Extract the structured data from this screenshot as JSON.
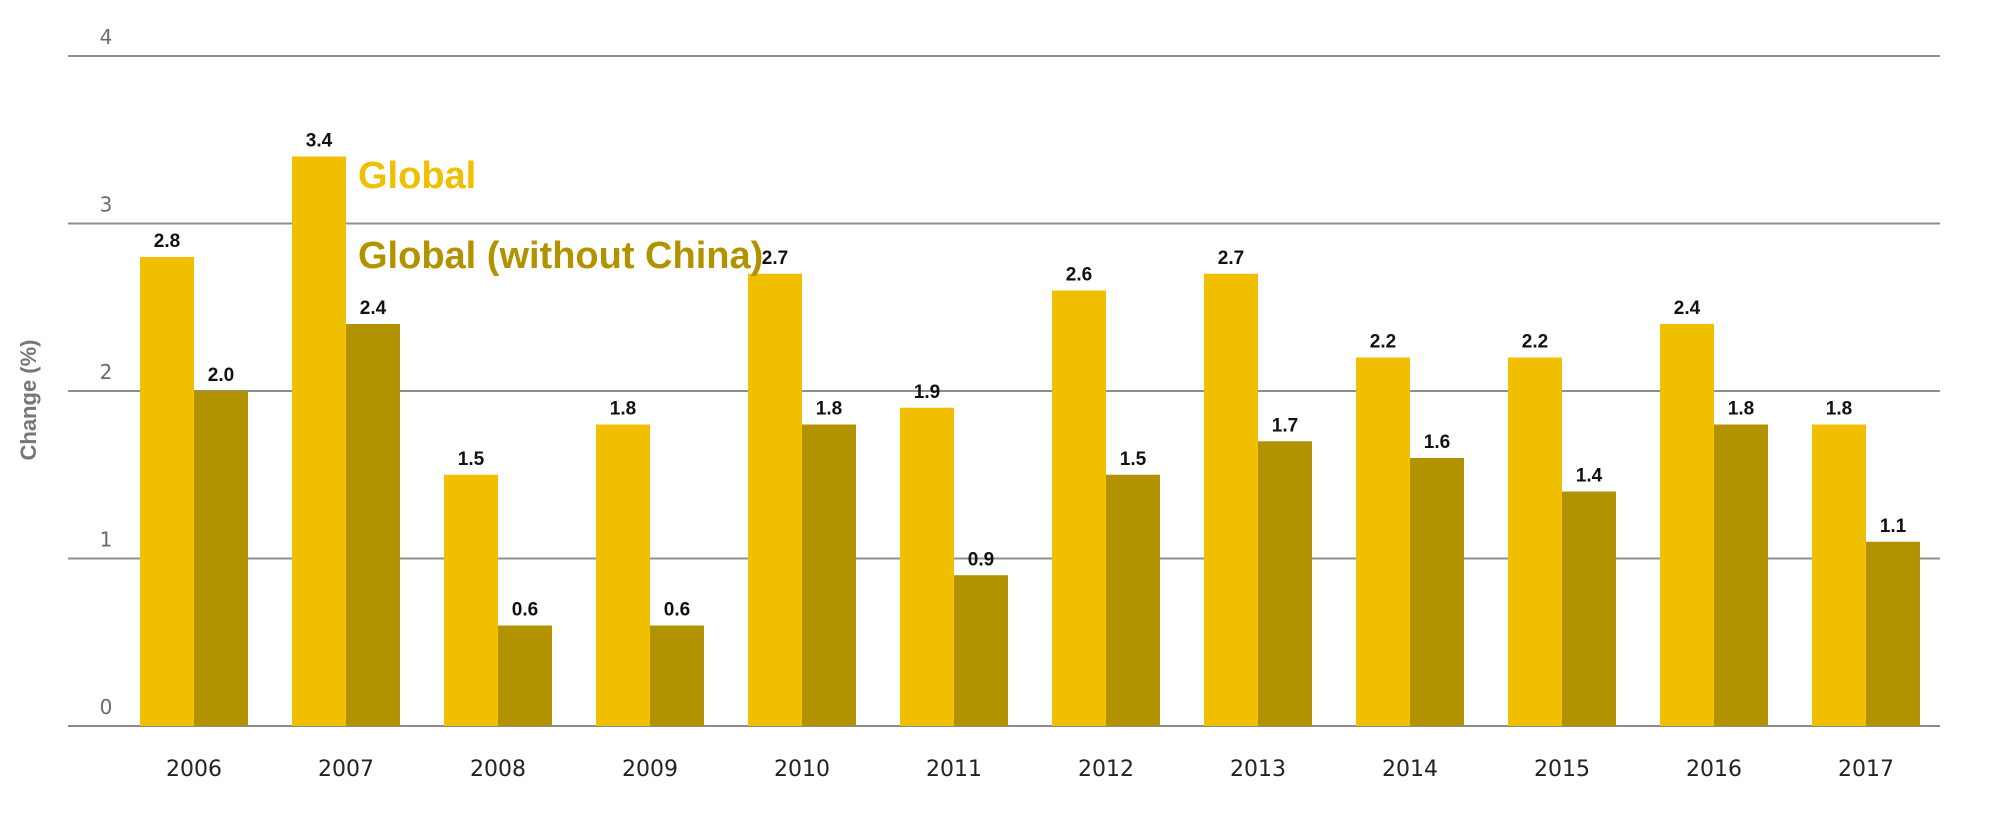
{
  "chart_data": {
    "type": "bar",
    "ylabel": "Change (%)",
    "xlabel": "",
    "ylim": [
      0,
      4
    ],
    "yticks": [
      "0",
      "1",
      "2",
      "3",
      "4"
    ],
    "grid": true,
    "legend_position": "top-left inside plot",
    "categories": [
      "2006",
      "2007",
      "2008",
      "2009",
      "2010",
      "2011",
      "2012",
      "2013",
      "2014",
      "2015",
      "2016",
      "2017"
    ],
    "series": [
      {
        "name": "Global",
        "color": "#f0c000",
        "values": [
          2.8,
          3.4,
          1.5,
          1.8,
          2.7,
          1.9,
          2.6,
          2.7,
          2.2,
          2.2,
          2.4,
          1.8
        ],
        "labels": [
          "2.8",
          "3.4",
          "1.5",
          "1.8",
          "2.7",
          "1.9",
          "2.6",
          "2.7",
          "2.2",
          "2.2",
          "2.4",
          "1.8"
        ]
      },
      {
        "name": "Global (without China)",
        "color": "#b39200",
        "values": [
          2.0,
          2.4,
          0.6,
          0.6,
          1.8,
          0.9,
          1.5,
          1.7,
          1.6,
          1.4,
          1.8,
          1.1
        ],
        "labels": [
          "2.0",
          "2.4",
          "0.6",
          "0.6",
          "1.8",
          "0.9",
          "1.5",
          "1.7",
          "1.6",
          "1.4",
          "1.8",
          "1.1"
        ]
      }
    ]
  }
}
